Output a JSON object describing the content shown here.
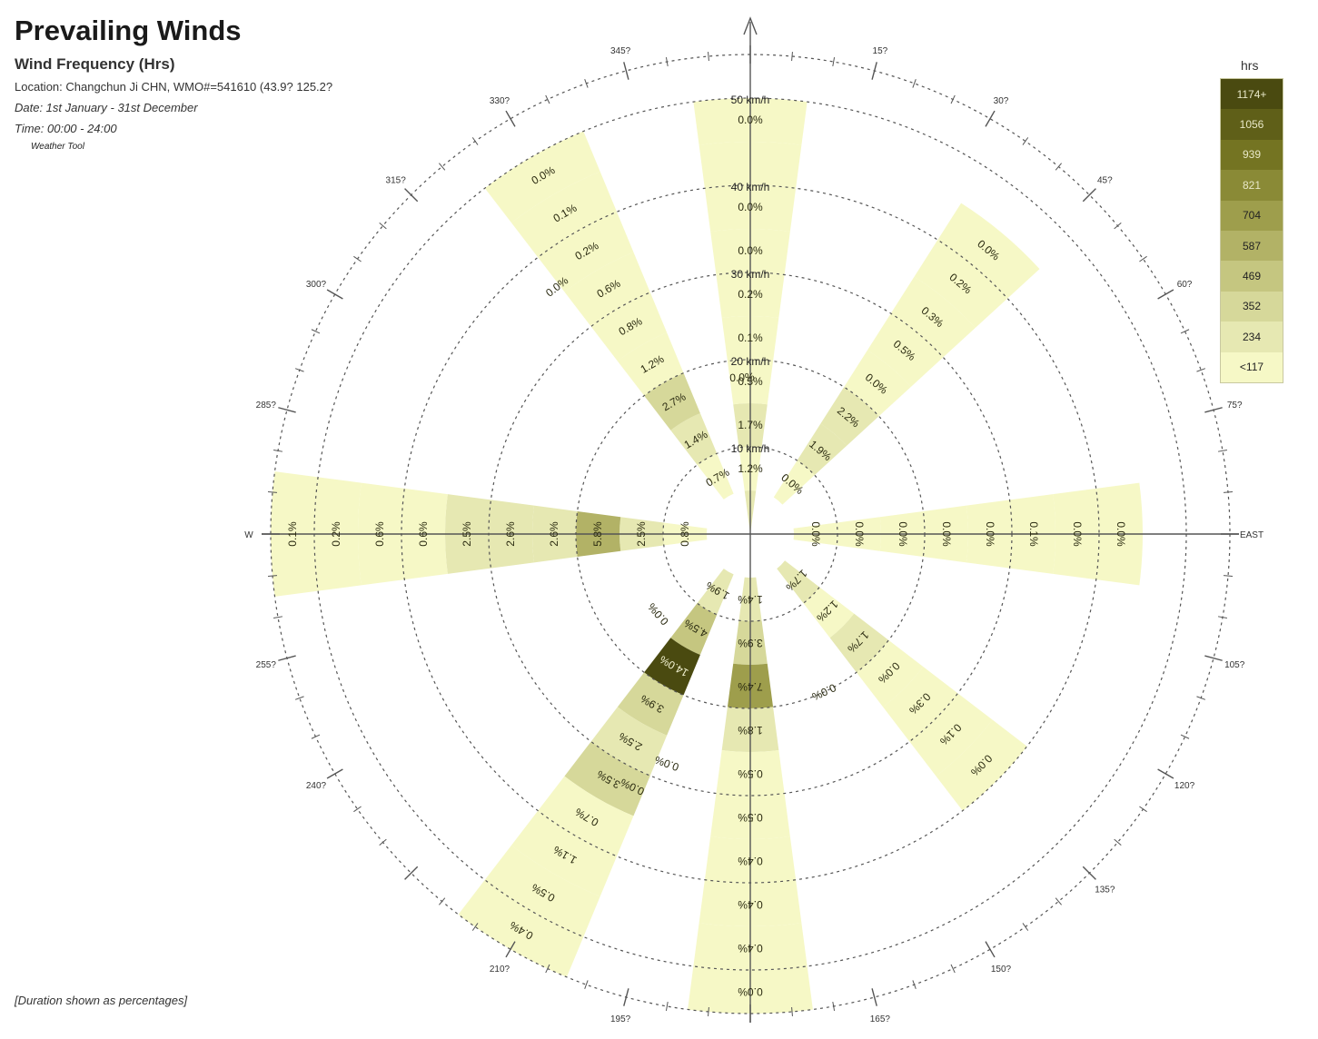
{
  "header": {
    "title": "Prevailing Winds",
    "subtitle": "Wind Frequency (Hrs)",
    "location": "Location: Changchun Ji CHN, WMO#=541610 (43.9? 125.2?",
    "date": "Date: 1st January - 31st December",
    "time": "Time: 00:00 - 24:00",
    "tool": "Weather Tool"
  },
  "footnote": "[Duration shown as percentages]",
  "legend": {
    "title": "hrs",
    "entries": [
      {
        "label": "1174+",
        "color": "#4a4a10"
      },
      {
        "label": "1056",
        "color": "#5f5f18"
      },
      {
        "label": "939",
        "color": "#747422"
      },
      {
        "label": "821",
        "color": "#8a8a36"
      },
      {
        "label": "704",
        "color": "#9e9e4c"
      },
      {
        "label": "587",
        "color": "#b2b266"
      },
      {
        "label": "469",
        "color": "#c5c680"
      },
      {
        "label": "352",
        "color": "#d6d89a"
      },
      {
        "label": "234",
        "color": "#e6e8b2"
      },
      {
        "label": "<117",
        "color": "#f6f8c6"
      }
    ]
  },
  "chart_data": {
    "type": "polar-bar",
    "title": "Prevailing Winds",
    "subtitle": "Wind Frequency (Hrs)",
    "value_unit": "% of hours",
    "direction_labels": [
      {
        "deg": 15,
        "label": "15?"
      },
      {
        "deg": 30,
        "label": "30?"
      },
      {
        "deg": 45,
        "label": "45?"
      },
      {
        "deg": 60,
        "label": "60?"
      },
      {
        "deg": 75,
        "label": "75?"
      },
      {
        "deg": 90,
        "label": "EAST"
      },
      {
        "deg": 105,
        "label": "105?"
      },
      {
        "deg": 120,
        "label": "120?"
      },
      {
        "deg": 135,
        "label": "135?"
      },
      {
        "deg": 150,
        "label": "150?"
      },
      {
        "deg": 165,
        "label": "165?"
      },
      {
        "deg": 195,
        "label": "195?"
      },
      {
        "deg": 210,
        "label": "210?"
      },
      {
        "deg": 240,
        "label": "240?"
      },
      {
        "deg": 255,
        "label": "255?"
      },
      {
        "deg": 270,
        "label": "W"
      },
      {
        "deg": 285,
        "label": "285?"
      },
      {
        "deg": 300,
        "label": "300?"
      },
      {
        "deg": 315,
        "label": "315?"
      },
      {
        "deg": 330,
        "label": "330?"
      },
      {
        "deg": 345,
        "label": "345?"
      }
    ],
    "speed_rings": [
      {
        "speed": 10,
        "label": "10 km/h"
      },
      {
        "speed": 20,
        "label": "20 km/h"
      },
      {
        "speed": 30,
        "label": "30 km/h"
      },
      {
        "speed": 40,
        "label": "40 km/h"
      },
      {
        "speed": 50,
        "label": "50 km/h"
      }
    ],
    "max_speed": 55,
    "sector_width_deg": 15,
    "bin_width_kmh": 5,
    "sectors": [
      {
        "dir": 0,
        "bins": [
          {
            "from": 0,
            "to": 5,
            "value": 1.5,
            "label": ""
          },
          {
            "from": 5,
            "to": 10,
            "value": 1.2,
            "label": "1.2%"
          },
          {
            "from": 10,
            "to": 15,
            "value": 1.7,
            "label": "1.7%"
          },
          {
            "from": 15,
            "to": 20,
            "value": 0.5,
            "label": "0.5%"
          },
          {
            "from": 20,
            "to": 25,
            "value": 0.1,
            "label": "0.1%"
          },
          {
            "from": 25,
            "to": 30,
            "value": 0.2,
            "label": "0.2%"
          },
          {
            "from": 30,
            "to": 35,
            "value": 0.0,
            "label": "0.0%"
          },
          {
            "from": 35,
            "to": 40,
            "value": 0.0,
            "label": "0.0%"
          },
          {
            "from": 40,
            "to": 45,
            "value": 0.0,
            "label": ""
          },
          {
            "from": 45,
            "to": 50,
            "value": 0.0,
            "label": "0.0%"
          }
        ]
      },
      {
        "dir": 40,
        "bins": [
          {
            "from": 5,
            "to": 10,
            "value": 0.0,
            "label": "0.0%"
          },
          {
            "from": 10,
            "to": 15,
            "value": 1.9,
            "label": "1.9%"
          },
          {
            "from": 15,
            "to": 20,
            "value": 2.2,
            "label": "2.2%"
          },
          {
            "from": 20,
            "to": 25,
            "value": 0.0,
            "label": "0.0%"
          },
          {
            "from": 25,
            "to": 30,
            "value": 0.5,
            "label": "0.5%"
          },
          {
            "from": 30,
            "to": 35,
            "value": 0.3,
            "label": "0.3%"
          },
          {
            "from": 35,
            "to": 40,
            "value": 0.2,
            "label": "0.2%"
          },
          {
            "from": 40,
            "to": 45,
            "value": 0.0,
            "label": "0.0%"
          }
        ]
      },
      {
        "dir": 90,
        "bins": [
          {
            "from": 5,
            "to": 10,
            "value": 0.0,
            "label": "0.0%"
          },
          {
            "from": 10,
            "to": 15,
            "value": 0.0,
            "label": "0.0%"
          },
          {
            "from": 15,
            "to": 20,
            "value": 0.0,
            "label": "0.0%"
          },
          {
            "from": 20,
            "to": 25,
            "value": 0.0,
            "label": "0.0%"
          },
          {
            "from": 25,
            "to": 30,
            "value": 0.0,
            "label": "0.0%"
          },
          {
            "from": 30,
            "to": 35,
            "value": 0.1,
            "label": "0.1%"
          },
          {
            "from": 35,
            "to": 40,
            "value": 0.0,
            "label": "0.0%"
          },
          {
            "from": 40,
            "to": 45,
            "value": 0.0,
            "label": "0.0%"
          }
        ]
      },
      {
        "dir": 135,
        "bins": [
          {
            "from": 5,
            "to": 10,
            "value": 1.7,
            "label": "1.7%"
          },
          {
            "from": 10,
            "to": 15,
            "value": 1.2,
            "label": "1.2%"
          },
          {
            "from": 15,
            "to": 20,
            "value": 1.7,
            "label": "1.7%"
          },
          {
            "from": 20,
            "to": 25,
            "value": 0.0,
            "label": "0.0%"
          },
          {
            "from": 25,
            "to": 30,
            "value": 0.3,
            "label": "0.3%"
          },
          {
            "from": 30,
            "to": 35,
            "value": 0.1,
            "label": "0.1%"
          },
          {
            "from": 35,
            "to": 40,
            "value": 0.0,
            "label": "0.0%"
          }
        ]
      },
      {
        "dir": 180,
        "bins": [
          {
            "from": 5,
            "to": 10,
            "value": 1.4,
            "label": "1.4%"
          },
          {
            "from": 10,
            "to": 15,
            "value": 3.9,
            "label": "3.9%"
          },
          {
            "from": 15,
            "to": 20,
            "value": 7.4,
            "label": "7.4%"
          },
          {
            "from": 20,
            "to": 25,
            "value": 1.8,
            "label": "1.8%"
          },
          {
            "from": 25,
            "to": 30,
            "value": 0.5,
            "label": "0.5%"
          },
          {
            "from": 30,
            "to": 35,
            "value": 0.5,
            "label": "0.5%"
          },
          {
            "from": 35,
            "to": 40,
            "value": 0.4,
            "label": "0.4%"
          },
          {
            "from": 40,
            "to": 45,
            "value": 0.4,
            "label": "0.4%"
          },
          {
            "from": 45,
            "to": 50,
            "value": 0.4,
            "label": "0.4%"
          },
          {
            "from": 50,
            "to": 55,
            "value": 0.0,
            "label": "0.0%"
          }
        ]
      },
      {
        "dir": 210,
        "bins": [
          {
            "from": 5,
            "to": 10,
            "value": 1.9,
            "label": "1.9%"
          },
          {
            "from": 10,
            "to": 15,
            "value": 4.5,
            "label": "4.5%"
          },
          {
            "from": 15,
            "to": 20,
            "value": 14.0,
            "label": "14.0%"
          },
          {
            "from": 20,
            "to": 25,
            "value": 3.9,
            "label": "3.9%"
          },
          {
            "from": 25,
            "to": 30,
            "value": 2.5,
            "label": "2.5%"
          },
          {
            "from": 30,
            "to": 35,
            "value": 3.5,
            "label": "3.5%"
          },
          {
            "from": 35,
            "to": 40,
            "value": 0.7,
            "label": "0.7%"
          },
          {
            "from": 40,
            "to": 45,
            "value": 1.1,
            "label": "1.1%"
          },
          {
            "from": 45,
            "to": 50,
            "value": 0.5,
            "label": "0.5%"
          },
          {
            "from": 50,
            "to": 55,
            "value": 0.4,
            "label": "0.4%"
          }
        ]
      },
      {
        "dir": 270,
        "bins": [
          {
            "from": 5,
            "to": 10,
            "value": 0.8,
            "label": "0.8%"
          },
          {
            "from": 10,
            "to": 15,
            "value": 2.5,
            "label": "2.5%"
          },
          {
            "from": 15,
            "to": 20,
            "value": 5.8,
            "label": "5.8%"
          },
          {
            "from": 20,
            "to": 25,
            "value": 2.6,
            "label": "2.6%"
          },
          {
            "from": 25,
            "to": 30,
            "value": 2.6,
            "label": "2.6%"
          },
          {
            "from": 30,
            "to": 35,
            "value": 2.5,
            "label": "2.5%"
          },
          {
            "from": 35,
            "to": 40,
            "value": 0.6,
            "label": "0.6%"
          },
          {
            "from": 40,
            "to": 45,
            "value": 0.6,
            "label": "0.6%"
          },
          {
            "from": 45,
            "to": 50,
            "value": 0.2,
            "label": "0.2%"
          },
          {
            "from": 50,
            "to": 55,
            "value": 0.1,
            "label": "0.1%"
          }
        ]
      },
      {
        "dir": 330,
        "bins": [
          {
            "from": 5,
            "to": 10,
            "value": 0.7,
            "label": "0.7%"
          },
          {
            "from": 10,
            "to": 15,
            "value": 1.4,
            "label": "1.4%"
          },
          {
            "from": 15,
            "to": 20,
            "value": 2.7,
            "label": "2.7%"
          },
          {
            "from": 20,
            "to": 25,
            "value": 1.2,
            "label": "1.2%"
          },
          {
            "from": 25,
            "to": 30,
            "value": 0.8,
            "label": "0.8%"
          },
          {
            "from": 30,
            "to": 35,
            "value": 0.6,
            "label": "0.6%"
          },
          {
            "from": 35,
            "to": 40,
            "value": 0.2,
            "label": "0.2%"
          },
          {
            "from": 40,
            "to": 45,
            "value": 0.1,
            "label": "0.1%"
          },
          {
            "from": 45,
            "to": 50,
            "value": 0.0,
            "label": "0.0%"
          }
        ]
      }
    ],
    "floating_labels": [
      {
        "dir": 357,
        "speed": 18,
        "label": "0.0%"
      },
      {
        "dir": 322,
        "speed": 36,
        "label": "0.0%"
      },
      {
        "dir": 229,
        "speed": 14,
        "label": "0.0%"
      },
      {
        "dir": 155,
        "speed": 20,
        "label": "0.0%"
      },
      {
        "dir": 200,
        "speed": 28,
        "label": "0.0%"
      },
      {
        "dir": 205,
        "speed": 32,
        "label": "0.0%"
      }
    ]
  }
}
